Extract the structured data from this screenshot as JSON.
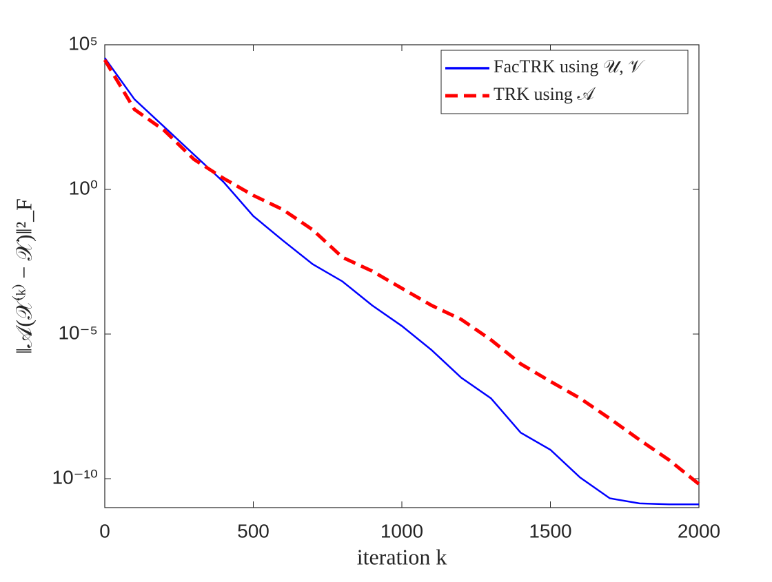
{
  "chart_data": {
    "type": "line",
    "xlabel": "iteration k",
    "ylabel": "‖𝒜(𝒳⁽ᵏ⁾ − 𝒳)‖²_F",
    "x": [
      0,
      100,
      200,
      300,
      400,
      500,
      600,
      700,
      800,
      900,
      1000,
      1100,
      1200,
      1300,
      1400,
      1500,
      1600,
      1700,
      1800,
      1900,
      2000
    ],
    "series": [
      {
        "name": "FacTRK using 𝒰, 𝒱",
        "color": "#0000ff",
        "dash": "solid",
        "values": [
          35000.0,
          1300.0,
          145,
          16,
          1.8,
          0.12,
          0.017,
          0.0026,
          0.00066,
          9.8e-05,
          1.9e-05,
          2.8e-06,
          3.1e-07,
          6e-08,
          3.9e-09,
          1e-09,
          1.1e-10,
          2.1e-11,
          1.4e-11,
          1.3e-11,
          1.3e-11
        ]
      },
      {
        "name": "TRK using 𝒜",
        "color": "#ff0000",
        "dash": "dashed",
        "values": [
          30000.0,
          580,
          110,
          11,
          2.4,
          0.62,
          0.2,
          0.04,
          0.0045,
          0.0015,
          0.00038,
          9.8e-05,
          3.2e-05,
          6.3e-06,
          9.3e-07,
          2.3e-07,
          6e-08,
          1.2e-08,
          2.2e-09,
          4.4e-10,
          6.5e-11
        ]
      }
    ],
    "xlim": [
      0,
      2000
    ],
    "xticks": [
      0,
      500,
      1000,
      1500,
      2000
    ],
    "ylim": [
      1e-11,
      100000.0
    ],
    "ylog": true,
    "yticks": [
      {
        "value": 1e-10,
        "label": "10⁻¹⁰"
      },
      {
        "value": 1e-05,
        "label": "10⁻⁵"
      },
      {
        "value": 1,
        "label": "10⁰"
      },
      {
        "value": 100000.0,
        "label": "10⁵"
      }
    ],
    "legend": "upper right",
    "grid": false
  }
}
